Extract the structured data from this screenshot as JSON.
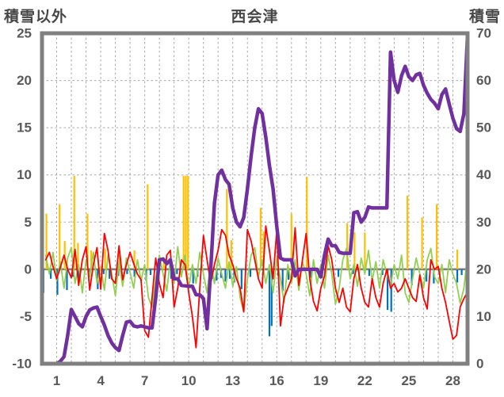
{
  "header": {
    "left_axis_title": "積雪以外",
    "chart_title": "西会津",
    "right_axis_title": "積雪"
  },
  "chart_data": {
    "type": "combo",
    "title": "西会津",
    "grid": true,
    "legend": "none",
    "x_axis": {
      "min": 0,
      "max": 29,
      "gridline_step_days": 1,
      "tick_positions": [
        1,
        4,
        7,
        10,
        13,
        16,
        19,
        22,
        25,
        28
      ],
      "tick_labels": [
        "1",
        "4",
        "7",
        "10",
        "13",
        "16",
        "19",
        "22",
        "25",
        "28"
      ]
    },
    "left_axis": {
      "label": "積雪以外",
      "min": -10,
      "max": 25,
      "tick_values": [
        25,
        20,
        15,
        10,
        5,
        0,
        -5,
        -10
      ]
    },
    "right_axis": {
      "label": "積雪",
      "min": 0,
      "max": 70,
      "tick_values": [
        70,
        60,
        50,
        40,
        30,
        20,
        10,
        0
      ]
    },
    "sample_start_day": 0.25,
    "sample_step_days": 0.25,
    "series": [
      {
        "name": "orange-bars",
        "type": "bar",
        "axis": "left",
        "color": "#FFC000",
        "points": [
          [
            0.3,
            5.9
          ],
          [
            1.2,
            6.9
          ],
          [
            1.55,
            3.0
          ],
          [
            2.2,
            9.9
          ],
          [
            2.45,
            2.8
          ],
          [
            3.1,
            5.9
          ],
          [
            3.35,
            2.0
          ],
          [
            4.3,
            2.2
          ],
          [
            5.3,
            1.5
          ],
          [
            6.3,
            2.0
          ],
          [
            7.2,
            9.0
          ],
          [
            8.3,
            1.2
          ],
          [
            9.65,
            9.9
          ],
          [
            9.8,
            9.9
          ],
          [
            9.95,
            9.9
          ],
          [
            12.6,
            8.5
          ],
          [
            12.9,
            3.1
          ],
          [
            14.9,
            6.5
          ],
          [
            15.1,
            4.0
          ],
          [
            17.0,
            5.9
          ],
          [
            18.05,
            9.8
          ],
          [
            20.8,
            4.9
          ],
          [
            21.3,
            3.9
          ],
          [
            22.0,
            3.9
          ],
          [
            24.9,
            7.8
          ],
          [
            25.9,
            5.5
          ],
          [
            26.9,
            6.9
          ],
          [
            28.3,
            2.1
          ]
        ]
      },
      {
        "name": "blue-bars",
        "type": "bar",
        "axis": "left",
        "color": "#0070C0",
        "points": [
          [
            0.1,
            -2.5
          ],
          [
            0.6,
            -1.0
          ],
          [
            1.05,
            -2.7
          ],
          [
            1.7,
            -2.2
          ],
          [
            2.1,
            -0.8
          ],
          [
            2.5,
            -1.0
          ],
          [
            3.2,
            -0.6
          ],
          [
            3.8,
            -2.1
          ],
          [
            4.2,
            -0.5
          ],
          [
            4.6,
            -1.0
          ],
          [
            5.2,
            -0.7
          ],
          [
            5.8,
            -0.5
          ],
          [
            6.3,
            -0.8
          ],
          [
            7.1,
            -1.2
          ],
          [
            7.4,
            -0.6
          ],
          [
            8.8,
            -1.0
          ],
          [
            9.2,
            -0.5
          ],
          [
            10.3,
            -1.5
          ],
          [
            10.6,
            -0.8
          ],
          [
            11.6,
            -1.0
          ],
          [
            11.9,
            -1.2
          ],
          [
            12.2,
            -0.9
          ],
          [
            12.5,
            -1.3
          ],
          [
            12.8,
            -1.0
          ],
          [
            13.1,
            -1.4
          ],
          [
            13.6,
            -2.1
          ],
          [
            14.2,
            -0.8
          ],
          [
            15.5,
            -7.1
          ],
          [
            15.65,
            -6.0
          ],
          [
            16.1,
            -0.7
          ],
          [
            16.4,
            -2.3
          ],
          [
            16.8,
            -1.1
          ],
          [
            17.3,
            -0.6
          ],
          [
            18.3,
            -0.9
          ],
          [
            19.3,
            -0.6
          ],
          [
            20.2,
            -0.8
          ],
          [
            21.2,
            -0.5
          ],
          [
            22.3,
            -0.7
          ],
          [
            23.2,
            -0.6
          ],
          [
            23.55,
            -4.3
          ],
          [
            23.8,
            -4.5
          ],
          [
            25.2,
            -1.7
          ],
          [
            26.2,
            -1.3
          ],
          [
            26.7,
            -1.5
          ],
          [
            28.3,
            -1.4
          ],
          [
            28.6,
            -0.6
          ]
        ]
      },
      {
        "name": "green-line",
        "type": "line",
        "axis": "left",
        "color": "#92D050",
        "stroke_width": 1.8,
        "values": [
          1.5,
          -0.5,
          1.8,
          -1.2,
          0.8,
          -2.0,
          1.2,
          2.3,
          -1.5,
          0.5,
          -2.5,
          1.0,
          -0.8,
          1.8,
          -1.5,
          0.3,
          -2.2,
          1.5,
          -0.5,
          -2.8,
          0.8,
          -1.8,
          1.2,
          -0.3,
          -2.0,
          1.0,
          -1.2,
          0.5,
          -3.0,
          -4.0,
          -1.0,
          1.5,
          -0.5,
          -2.3,
          1.0,
          -1.5,
          2.4,
          -0.8,
          1.5,
          -2.0,
          0.5,
          -1.5,
          1.8,
          -0.5,
          -2.5,
          0.8,
          -1.5,
          1.2,
          -0.5,
          -2.0,
          0.8,
          -1.8,
          0.3,
          -3.0,
          -4.5,
          -1.0,
          1.5,
          2.3,
          -0.8,
          1.0,
          -1.5,
          0.5,
          -2.5,
          1.2,
          -1.0,
          -3.5,
          0.5,
          -1.5,
          1.0,
          -2.2,
          0.8,
          -0.5,
          -2.8,
          1.0,
          -1.5,
          0.5,
          -2.0,
          1.5,
          -0.5,
          -3.7,
          -2.0,
          1.0,
          2.2,
          -1.0,
          0.5,
          -1.8,
          1.2,
          -0.5,
          2.0,
          -1.2,
          0.8,
          -2.0,
          1.0,
          -0.5,
          -1.8,
          0.5,
          -1.0,
          1.5,
          -2.5,
          -3.5,
          -1.0,
          1.2,
          -0.5,
          -2.0,
          1.0,
          2.2,
          -0.8,
          -1.5,
          0.5,
          -2.5,
          1.0,
          -0.5,
          -1.5,
          -3.6,
          -2.0,
          1.5,
          2.0
        ]
      },
      {
        "name": "red-line",
        "type": "line",
        "axis": "left",
        "color": "#FF0000",
        "stroke_width": 1.8,
        "values": [
          1.0,
          1.8,
          0.3,
          -1.0,
          0.2,
          1.5,
          0.0,
          -0.9,
          2.1,
          -1.7,
          1.0,
          2.4,
          -2.2,
          0.5,
          2.3,
          -2.1,
          3.8,
          2.0,
          -1.0,
          -1.5,
          2.5,
          -1.1,
          0.5,
          1.8,
          0.6,
          -0.5,
          -1.1,
          -6.5,
          -7.2,
          -3.0,
          1.2,
          -1.5,
          -3.0,
          1.5,
          2.0,
          -4.0,
          -2.0,
          1.0,
          0.5,
          -2.5,
          -5.0,
          -8.3,
          -2.0,
          3.6,
          1.0,
          -1.5,
          0.5,
          2.0,
          4.2,
          3.6,
          1.5,
          0.5,
          -1.0,
          -2.0,
          -4.5,
          4.2,
          3.0,
          1.0,
          -1.0,
          -2.0,
          4.6,
          2.0,
          -1.0,
          4.2,
          -6.0,
          -3.0,
          -2.0,
          -1.0,
          4.4,
          -1.7,
          1.0,
          3.8,
          -1.0,
          -3.4,
          -4.4,
          -2.0,
          -0.7,
          2.5,
          1.0,
          -2.0,
          -3.5,
          -2.0,
          -4.0,
          -4.5,
          -1.0,
          0.5,
          -2.0,
          -3.5,
          -4.0,
          -1.0,
          -3.0,
          -4.0,
          -1.5,
          0.0,
          -2.0,
          -1.5,
          -2.4,
          -2.0,
          -1.0,
          -2.0,
          -3.0,
          -3.4,
          -0.6,
          -3.0,
          -4.2,
          1.0,
          0.0,
          0.3,
          -2.0,
          -3.5,
          -5.5,
          -7.4,
          -7.0,
          -4.0,
          -3.1,
          -2.4,
          -2.6
        ]
      },
      {
        "name": "purple-line-snow-depth",
        "type": "line",
        "axis": "right",
        "color": "#7030A0",
        "stroke_width": 4.5,
        "values": [
          0,
          0,
          0,
          0,
          0.5,
          1.5,
          6,
          11.5,
          10,
          8.5,
          7.8,
          10,
          11.4,
          11.8,
          12,
          10,
          8.2,
          6,
          4.4,
          3.4,
          2.8,
          6,
          8.8,
          9,
          8,
          7.8,
          8,
          7.8,
          7.6,
          7.6,
          14,
          22,
          22.2,
          21.2,
          22,
          18,
          18,
          16.6,
          16.5,
          16.4,
          16.4,
          14.6,
          14.6,
          13.8,
          7.4,
          20,
          34,
          40,
          41,
          39,
          38,
          33,
          30,
          29,
          31,
          37,
          44,
          50,
          54,
          53,
          48,
          42,
          37,
          29,
          22.4,
          22,
          22,
          22,
          18.6,
          20,
          20,
          20,
          20,
          20,
          20,
          18.4,
          23,
          26.4,
          25,
          25,
          23.6,
          23.4,
          23.4,
          23.4,
          32,
          32.2,
          30,
          31,
          33.2,
          33,
          33,
          33,
          33,
          33,
          66,
          60,
          57.5,
          61,
          63,
          60.8,
          60,
          61.2,
          61.5,
          59,
          57.3,
          56,
          55.2,
          54,
          57,
          58.2,
          55,
          52,
          49.8,
          49.2,
          53,
          69.8,
          70
        ]
      }
    ],
    "colors": {
      "frame": "#808080",
      "gridline": "#A6A6A6",
      "zero_line": "#808080",
      "tick_text": "#595959",
      "title_text": "#474747"
    }
  }
}
